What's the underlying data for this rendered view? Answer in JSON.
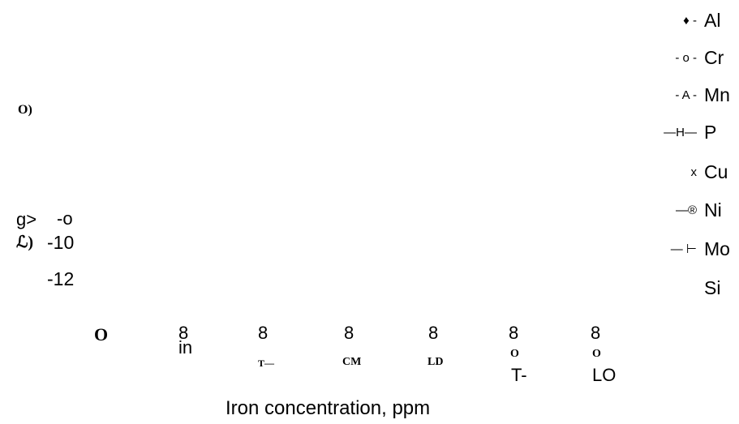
{
  "legend": [
    {
      "marker": "♦ -",
      "name": "Al"
    },
    {
      "marker": "- o -",
      "name": "Cr"
    },
    {
      "marker": "- A -",
      "name": "Mn"
    },
    {
      "marker": "—H—",
      "name": "P"
    },
    {
      "marker": "x",
      "name": "Cu"
    },
    {
      "marker": "—®",
      "name": "Ni"
    },
    {
      "marker": "— ⊢",
      "name": "Mo"
    },
    {
      "name": "Si"
    }
  ],
  "y_axis_fragments": [
    "O)",
    "g>",
    "-o",
    "ℒ)",
    "-10",
    "-12"
  ],
  "x_axis_fragments": [
    "O",
    "8",
    "in",
    "8",
    "T—",
    "8",
    "CM",
    "8",
    "LD",
    "8",
    "O",
    "T-",
    "8",
    "O",
    "LO"
  ],
  "x_axis_label": "Iron concentration, ppm"
}
